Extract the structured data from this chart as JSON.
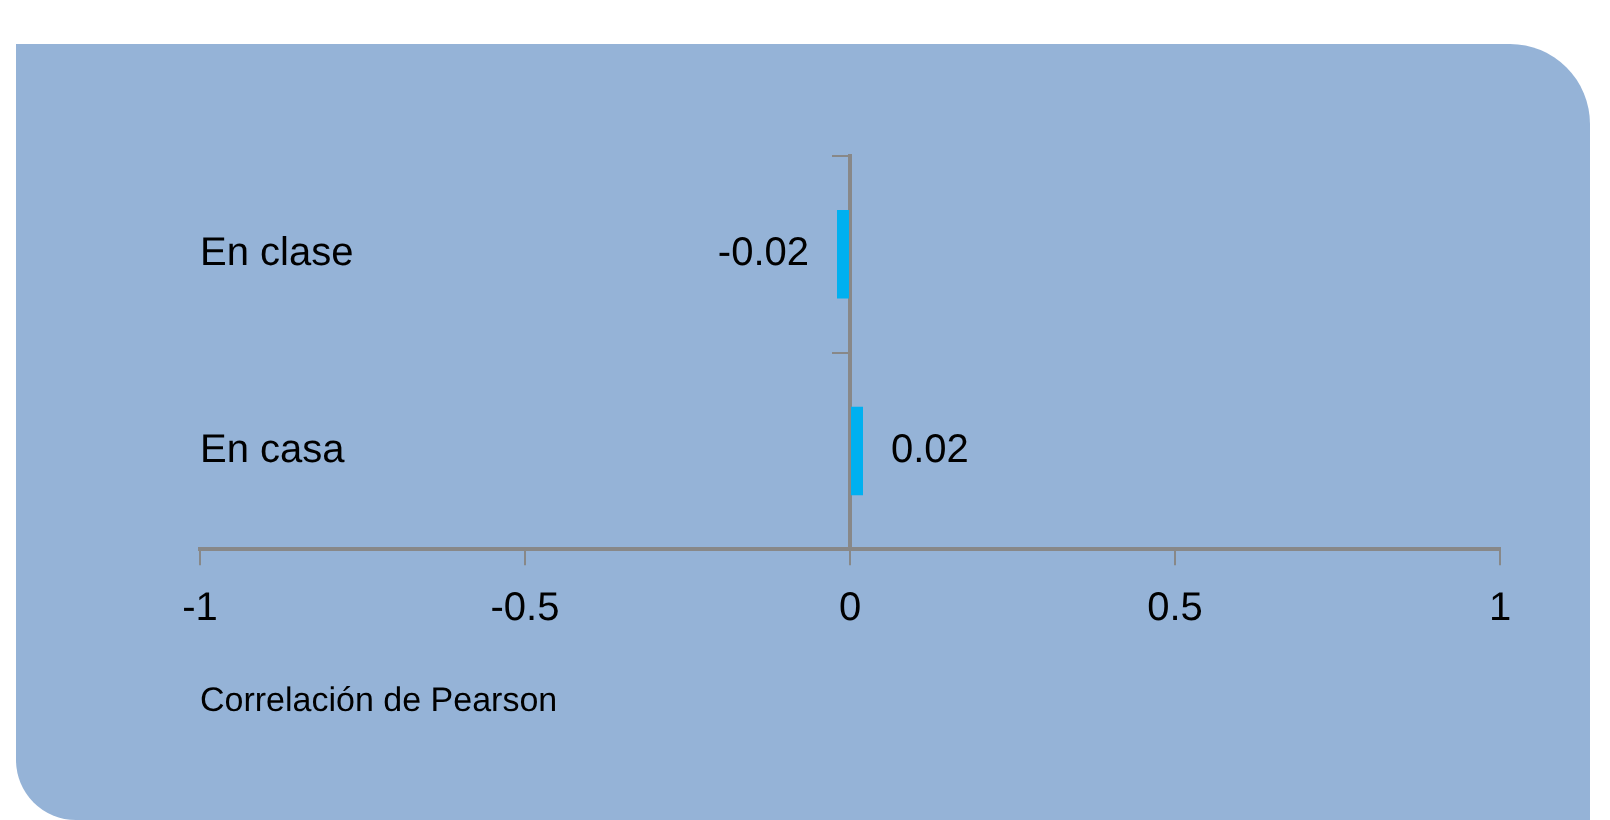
{
  "chart_data": {
    "type": "bar",
    "orientation": "horizontal",
    "categories": [
      "En clase",
      "En casa"
    ],
    "values": [
      -0.02,
      0.02
    ],
    "color": "#00b0f0",
    "xlim": [
      -1,
      1
    ],
    "xticks": [
      -1,
      -0.5,
      0,
      0.5,
      1
    ],
    "xlabel": "Correlación de Pearson",
    "data_labels": true
  }
}
